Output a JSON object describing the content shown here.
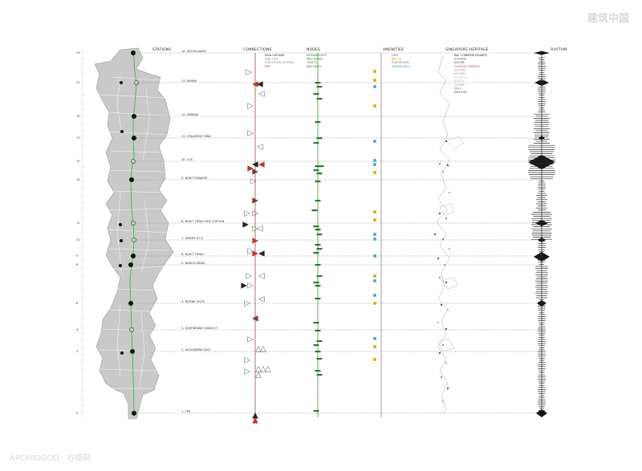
{
  "headers": {
    "stations": "STATIONS",
    "connections": "CONNECTIONS",
    "nodes": "NODES",
    "amenities": "AMENITIES",
    "heritage": "SINGAPORE HERITAGE",
    "rhythm": "RHYTHM"
  },
  "stations": [
    {
      "label": "14. WOODLANDS",
      "ruler": "23"
    },
    {
      "label": "13. KRANJI",
      "ruler": "21"
    },
    {
      "label": "12. MANDAI",
      "ruler": "19"
    },
    {
      "label": "11. STAGMONT RING",
      "ruler": "17"
    },
    {
      "label": "10. CCK",
      "ruler": "15"
    },
    {
      "label": "9. BUKIT PANJANG",
      "ruler": "14"
    },
    {
      "label": "8. BUKIT TIMAH FIRE STATION",
      "ruler": "11"
    },
    {
      "label": "7. UNDER K.L.E",
      "ruler": "10"
    },
    {
      "label": "6. BUKIT TIMAH",
      "ruler": "9"
    },
    {
      "label": "5. BANCK DRAW",
      "ruler": "8"
    },
    {
      "label": "4. BUONA VISTA",
      "ruler": "6"
    },
    {
      "label": "3. QUEENSWAY VIADUCT",
      "ruler": "4"
    },
    {
      "label": "2. ALEXANDRA HALT",
      "ruler": "3"
    },
    {
      "label": "1. TPK",
      "ruler": "0"
    }
  ],
  "legends": {
    "connections": [
      {
        "text": "MAIN GATEWAY",
        "color": "#333333"
      },
      {
        "text": "SIDE GATE",
        "color": "#8a8a8a"
      },
      {
        "text": "PEDESTRIAN GATEWAY",
        "color": "#8a8a8a"
      },
      {
        "text": "MRT",
        "color": "#c0392b"
      }
    ],
    "nodes": [
      {
        "text": "ENTRANCE/EXIT",
        "color": "#2e7d32"
      },
      {
        "text": "INFO KIOSKS",
        "color": "#2e7d32"
      },
      {
        "text": "TOILETS",
        "color": "#2e7d32"
      },
      {
        "text": "BIKE PARKS",
        "color": "#2e7d32"
      }
    ],
    "amenities": [
      {
        "text": "CAFE",
        "color": "#555555"
      },
      {
        "text": "BBQ PIT",
        "color": "#e0a800"
      },
      {
        "text": "PLAYGROUND",
        "color": "#777777"
      },
      {
        "text": "PARKING BAYS",
        "color": "#4aa3c8"
      }
    ],
    "heritage": [
      {
        "text": "RAIL CORRIDOR EXHIBITS",
        "color": "#222222"
      },
      {
        "text": "HOUSING",
        "color": "#555555"
      },
      {
        "text": "NATURE",
        "color": "#555555"
      },
      {
        "text": "UNUSUAL FINDINGS",
        "color": "#b05050"
      },
      {
        "text": "CULTURE",
        "color": "#d08080"
      },
      {
        "text": "MILITARY",
        "color": "#999999"
      },
      {
        "text": "SCHOOLS",
        "color": "#bbbbbb"
      },
      {
        "text": "HEALTH",
        "color": "#d9a0a0"
      },
      {
        "text": "LEISURE",
        "color": "#999999"
      },
      {
        "text": "WW II",
        "color": "#777777"
      },
      {
        "text": "INDUSTRY",
        "color": "#555555"
      }
    ]
  },
  "watermarks": {
    "top_right": "建筑中国",
    "bottom_left": "ARCHIGOOD · 谷德网"
  },
  "colors": {
    "map_fill": "#c9c9c9",
    "track": "#49b649",
    "node_green": "#2e7d32",
    "mrt_red": "#c0392b",
    "dashed": "#888888"
  }
}
